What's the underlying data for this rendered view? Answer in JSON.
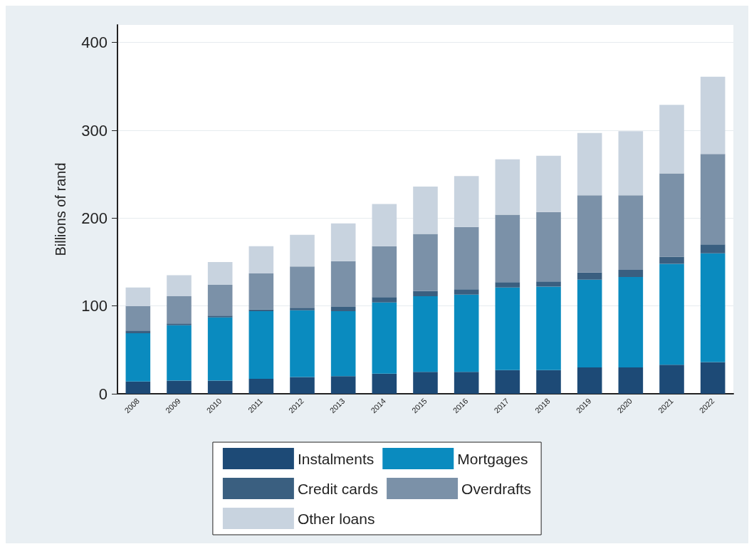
{
  "chart_data": {
    "type": "bar",
    "stacked": true,
    "ylabel": "Billions of rand",
    "categories": [
      "2008",
      "2009",
      "2010",
      "2011",
      "2012",
      "2013",
      "2014",
      "2015",
      "2016",
      "2017",
      "2018",
      "2019",
      "2020",
      "2021",
      "2022"
    ],
    "series": [
      {
        "name": "Instalments",
        "color": "#1d4a76",
        "values": [
          14,
          15,
          15,
          17,
          19,
          20,
          23,
          25,
          25,
          27,
          27,
          30,
          30,
          33,
          36
        ]
      },
      {
        "name": "Mortgages",
        "color": "#0a8bbf",
        "values": [
          55,
          63,
          72,
          77,
          76,
          74,
          81,
          86,
          88,
          94,
          95,
          100,
          103,
          115,
          124
        ]
      },
      {
        "name": "Credit cards",
        "color": "#3a5f80",
        "values": [
          3,
          2,
          2,
          2,
          3,
          5,
          6,
          6,
          6,
          6,
          6,
          8,
          8,
          8,
          10
        ]
      },
      {
        "name": "Overdrafts",
        "color": "#7b91a8",
        "values": [
          28,
          31,
          35,
          41,
          47,
          52,
          58,
          65,
          71,
          77,
          79,
          88,
          85,
          95,
          103
        ]
      },
      {
        "name": "Other loans",
        "color": "#c8d3df",
        "values": [
          21,
          24,
          26,
          31,
          36,
          43,
          48,
          54,
          58,
          63,
          64,
          71,
          73,
          78,
          88
        ]
      }
    ],
    "ylim": [
      0,
      420
    ],
    "yticks": [
      0,
      100,
      200,
      300,
      400
    ],
    "grid": "y",
    "legend": "bottom"
  }
}
